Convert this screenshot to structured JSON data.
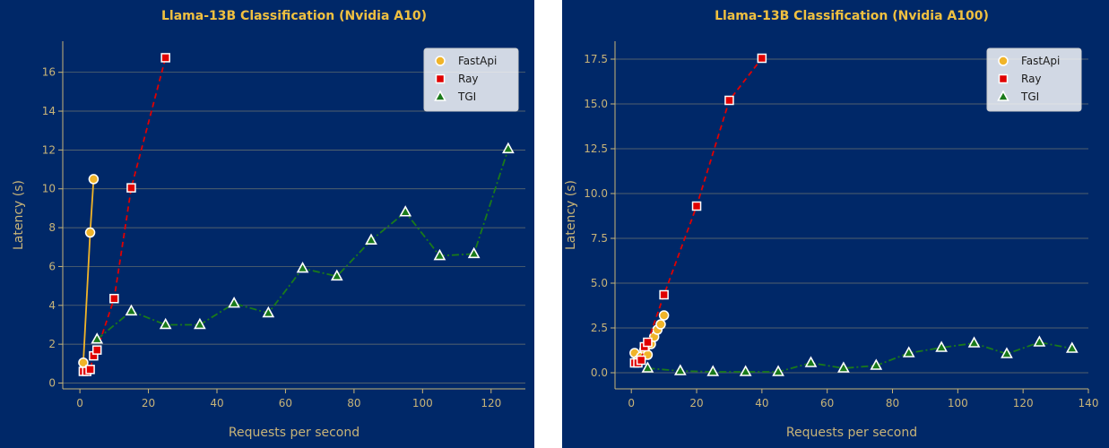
{
  "chart_data": [
    {
      "type": "line",
      "title": "Llama-13B Classification (Nvidia A10)",
      "xlabel": "Requests per second",
      "ylabel": "Latency (s)",
      "xlim": [
        -5,
        130
      ],
      "ylim": [
        -0.3,
        17.6
      ],
      "xticks": [
        0,
        20,
        40,
        60,
        80,
        100,
        120
      ],
      "yticks": [
        0,
        2,
        4,
        6,
        8,
        10,
        12,
        14,
        16
      ],
      "grid": "horizontal",
      "legend_position": "top-right",
      "series": [
        {
          "name": "FastApi",
          "color": "#f0b429",
          "line_style": "solid",
          "marker": "circle",
          "x": [
            1,
            3,
            4
          ],
          "y": [
            1.05,
            7.75,
            10.5
          ]
        },
        {
          "name": "Ray",
          "color": "#e00000",
          "line_style": "dashed",
          "marker": "square",
          "x": [
            1,
            2,
            3,
            4,
            5,
            10,
            15,
            25
          ],
          "y": [
            0.6,
            0.6,
            0.7,
            1.4,
            1.7,
            4.35,
            10.05,
            16.75
          ]
        },
        {
          "name": "TGI",
          "color": "#1a7a1a",
          "line_style": "dashdot",
          "marker": "triangle",
          "x": [
            5,
            15,
            25,
            35,
            45,
            55,
            65,
            75,
            85,
            95,
            105,
            115,
            125
          ],
          "y": [
            2.25,
            3.7,
            3.0,
            3.0,
            4.1,
            3.6,
            5.9,
            5.5,
            7.35,
            8.8,
            6.55,
            6.65,
            12.05
          ]
        }
      ]
    },
    {
      "type": "line",
      "title": "Llama-13B Classification (Nvidia A100)",
      "xlabel": "Requests per second",
      "ylabel": "Latency (s)",
      "xlim": [
        -5,
        140
      ],
      "ylim": [
        -0.9,
        18.5
      ],
      "xticks": [
        0,
        20,
        40,
        60,
        80,
        100,
        120,
        140
      ],
      "yticks": [
        0.0,
        2.5,
        5.0,
        7.5,
        10.0,
        12.5,
        15.0,
        17.5
      ],
      "ytick_labels": [
        "0.0",
        "2.5",
        "5.0",
        "7.5",
        "10.0",
        "12.5",
        "15.0",
        "17.5"
      ],
      "grid": "horizontal",
      "legend_position": "top-right",
      "series": [
        {
          "name": "FastApi",
          "color": "#f0b429",
          "line_style": "solid",
          "marker": "circle",
          "x": [
            1,
            2,
            3,
            4,
            5,
            6,
            7,
            8,
            9,
            10
          ],
          "y": [
            1.1,
            0.7,
            0.9,
            1.3,
            1.0,
            1.6,
            2.0,
            2.4,
            2.7,
            3.2
          ]
        },
        {
          "name": "Ray",
          "color": "#e00000",
          "line_style": "dashed",
          "marker": "square",
          "x": [
            1,
            2,
            3,
            4,
            5,
            10,
            20,
            30,
            40
          ],
          "y": [
            0.55,
            0.55,
            0.7,
            1.45,
            1.7,
            4.35,
            9.3,
            15.2,
            17.55
          ]
        },
        {
          "name": "TGI",
          "color": "#1a7a1a",
          "line_style": "dashdot",
          "marker": "triangle",
          "x": [
            5,
            15,
            25,
            35,
            45,
            55,
            65,
            75,
            85,
            95,
            105,
            115,
            125,
            135
          ],
          "y": [
            0.25,
            0.1,
            0.05,
            0.05,
            0.05,
            0.55,
            0.25,
            0.4,
            1.1,
            1.4,
            1.65,
            1.05,
            1.7,
            1.35
          ]
        }
      ]
    }
  ]
}
